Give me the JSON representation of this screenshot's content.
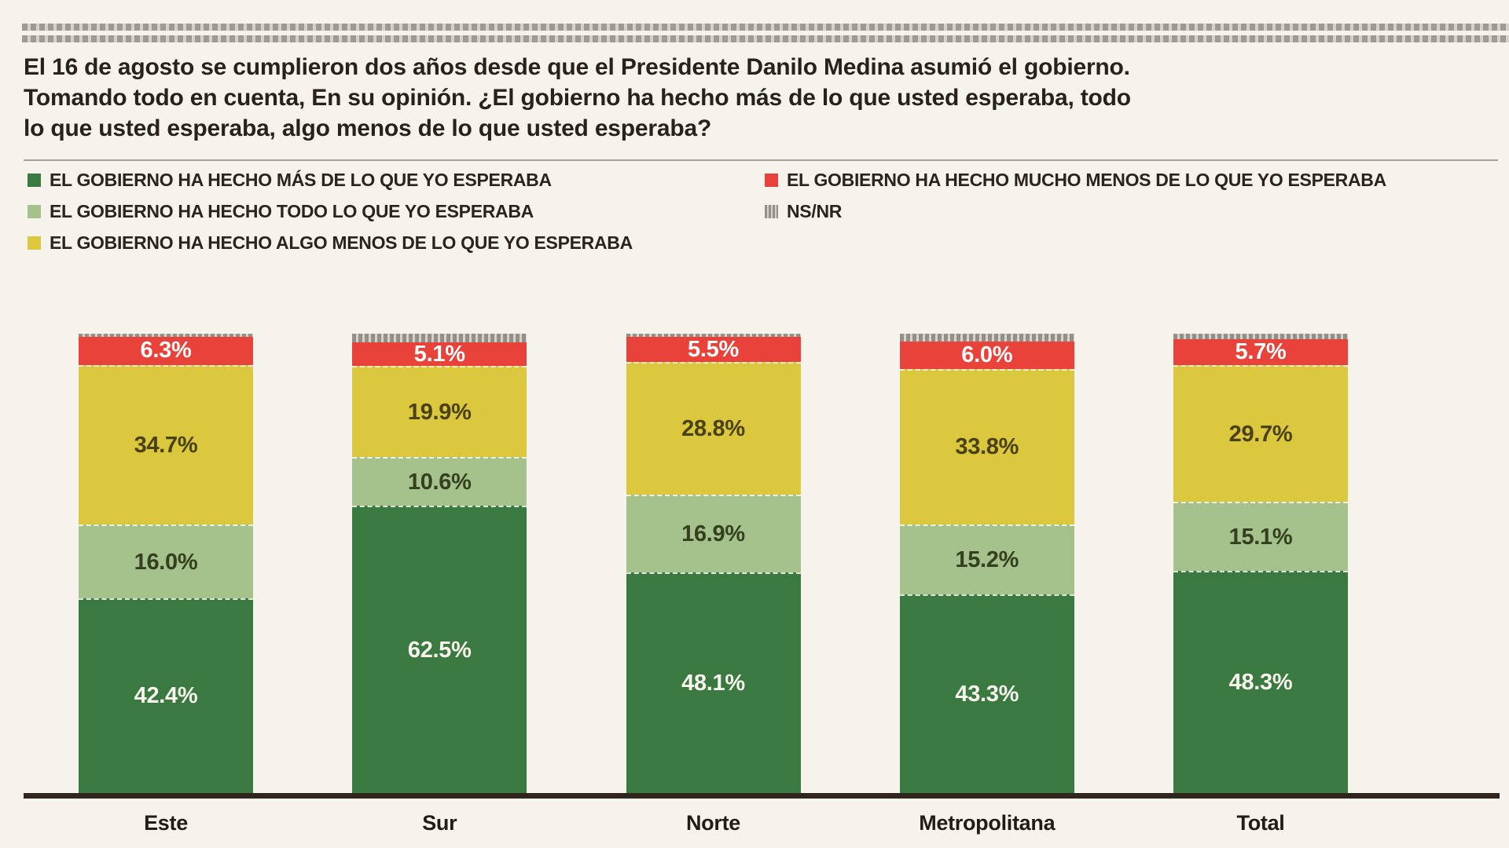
{
  "header": {
    "title_lines": [
      "El 16 de agosto se cumplieron dos años desde que el Presidente Danilo Medina asumió el gobierno.",
      "Tomando todo en cuenta, En su opinión. ¿El gobierno ha hecho más de lo que usted esperaba, todo",
      "lo que usted esperaba, algo menos de lo que usted esperaba?"
    ]
  },
  "colors": {
    "dark_green": "#3a7a40",
    "light_green": "#a6c28c",
    "yellow": "#dbc83e",
    "red": "#e8423a",
    "ns_gray": "#96938e",
    "paper": "#f6f3ed"
  },
  "legend": {
    "left": [
      {
        "label": "EL GOBIERNO HA HECHO MÁS DE LO QUE YO ESPERABA",
        "color": "#3a7a40"
      },
      {
        "label": "EL GOBIERNO HA HECHO TODO LO QUE YO ESPERABA",
        "color": "#a6c28c"
      },
      {
        "label": "EL GOBIERNO HA HECHO ALGO MENOS DE LO QUE YO ESPERABA",
        "color": "#dbc83e"
      }
    ],
    "right": [
      {
        "label": "EL GOBIERNO HA HECHO MUCHO MENOS DE LO QUE YO ESPERABA",
        "color": "#e8423a"
      },
      {
        "label": "NS/NR",
        "color": "#96938e",
        "halftone": true
      }
    ]
  },
  "chart_data": {
    "type": "bar",
    "stacked": true,
    "percent_stacked": true,
    "ylim": [
      0,
      100
    ],
    "value_suffix": "%",
    "grid": false,
    "categories": [
      "Este",
      "Sur",
      "Norte",
      "Metropolitana",
      "Total"
    ],
    "series": [
      {
        "name": "EL GOBIERNO HA HECHO MÁS DE LO QUE YO ESPERABA",
        "color": "#3a7a40",
        "text_color": "#f7f5ee",
        "values": [
          42.4,
          62.5,
          48.1,
          43.3,
          48.3
        ]
      },
      {
        "name": "EL GOBIERNO HA HECHO TODO LO QUE YO ESPERABA",
        "color": "#a6c28c",
        "text_color": "#34401f",
        "values": [
          16.0,
          10.6,
          16.9,
          15.2,
          15.1
        ]
      },
      {
        "name": "EL GOBIERNO HA HECHO ALGO MENOS DE LO QUE YO ESPERABA",
        "color": "#dbc83e",
        "text_color": "#4a4214",
        "values": [
          34.7,
          19.9,
          28.8,
          33.8,
          29.7
        ]
      },
      {
        "name": "EL GOBIERNO HA HECHO MUCHO MENOS DE LO QUE YO ESPERABA",
        "color": "#e8423a",
        "text_color": "#ffffff",
        "values": [
          6.3,
          5.1,
          5.5,
          6.0,
          5.7
        ]
      },
      {
        "name": "NS/NR",
        "color": "#96938e",
        "values": [
          0.6,
          1.9,
          0.7,
          1.7,
          1.2
        ],
        "labels_shown": false,
        "note": "unlabeled thin halftone strip at top of each bar; values are the remainder to 100%"
      }
    ]
  }
}
